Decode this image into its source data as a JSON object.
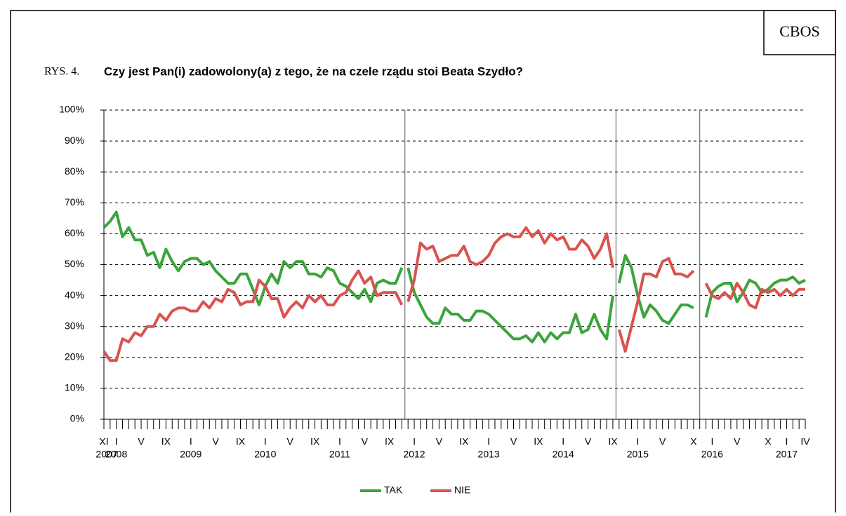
{
  "header": {
    "brand": "CBOS",
    "figure": "RYS. 4."
  },
  "chart_data": {
    "type": "line",
    "title": "Czy jest Pan(i) zadowolony(a) z tego, że na czele rządu stoi Beata Szydło?",
    "categories": [
      "XI",
      null,
      "I",
      null,
      null,
      null,
      "V",
      null,
      null,
      null,
      "IX",
      null,
      null,
      null,
      "I",
      null,
      null,
      null,
      "V",
      null,
      null,
      null,
      "IX",
      null,
      null,
      null,
      "I",
      null,
      null,
      null,
      "V",
      null,
      null,
      null,
      "IX",
      null,
      null,
      null,
      "I",
      null,
      null,
      null,
      "V",
      null,
      null,
      null,
      "IX",
      null,
      null,
      null,
      "I",
      null,
      null,
      null,
      "V",
      null,
      null,
      null,
      "IX",
      null,
      null,
      null,
      "I",
      null,
      null,
      null,
      "V",
      null,
      null,
      null,
      "IX",
      null,
      null,
      null,
      "I",
      null,
      null,
      null,
      "V",
      null,
      null,
      null,
      "IX",
      null,
      null,
      null,
      "I",
      null,
      null,
      null,
      "V",
      null,
      null,
      null,
      null,
      "X",
      null,
      null,
      "I",
      null,
      null,
      null,
      "V",
      null,
      null,
      null,
      null,
      "X",
      null,
      null,
      "I",
      null,
      null,
      "IV"
    ],
    "year_labels": [
      "2007",
      null,
      "2008",
      null,
      null,
      null,
      null,
      null,
      null,
      null,
      null,
      null,
      null,
      null,
      "2009",
      null,
      null,
      null,
      null,
      null,
      null,
      null,
      null,
      null,
      null,
      null,
      "2010",
      null,
      null,
      null,
      null,
      null,
      null,
      null,
      null,
      null,
      null,
      null,
      "2011",
      null,
      null,
      null,
      null,
      null,
      null,
      null,
      null,
      null,
      null,
      null,
      "2012",
      null,
      null,
      null,
      null,
      null,
      null,
      null,
      null,
      null,
      null,
      null,
      "2013",
      null,
      null,
      null,
      null,
      null,
      null,
      null,
      null,
      null,
      null,
      null,
      "2014",
      null,
      null,
      null,
      null,
      null,
      null,
      null,
      null,
      null,
      null,
      null,
      "2015",
      null,
      null,
      null,
      null,
      null,
      null,
      null,
      null,
      null,
      null,
      null,
      "2016",
      null,
      null,
      null,
      null,
      null,
      null,
      null,
      null,
      null,
      null,
      null,
      "2017",
      null,
      null,
      null
    ],
    "dividers": [
      48.5,
      82.5,
      96
    ],
    "series": [
      {
        "name": "TAK",
        "color": "#3aa53a",
        "values": [
          62,
          64,
          67,
          59,
          62,
          58,
          58,
          53,
          54,
          49,
          55,
          51,
          48,
          51,
          52,
          52,
          50,
          51,
          48,
          46,
          44,
          44,
          47,
          47,
          42,
          37,
          43,
          47,
          44,
          51,
          49,
          51,
          51,
          47,
          47,
          46,
          49,
          48,
          44,
          43,
          41,
          39,
          42,
          38,
          44,
          45,
          44,
          44,
          49,
          49,
          41,
          37,
          33,
          31,
          31,
          36,
          34,
          34,
          32,
          32,
          35,
          35,
          34,
          32,
          30,
          28,
          26,
          26,
          27,
          25,
          28,
          25,
          28,
          26,
          28,
          28,
          34,
          28,
          29,
          34,
          29,
          26,
          40,
          44,
          53,
          49,
          40,
          33,
          37,
          35,
          32,
          31,
          34,
          37,
          37,
          36,
          null,
          33,
          41,
          43,
          44,
          44,
          38,
          41,
          45,
          44,
          41,
          42,
          44,
          45,
          45,
          46,
          44,
          45
        ]
      },
      {
        "name": "NIE",
        "color": "#d9534f",
        "values": [
          22,
          19,
          19,
          26,
          25,
          28,
          27,
          30,
          30,
          34,
          32,
          35,
          36,
          36,
          35,
          35,
          38,
          36,
          39,
          38,
          42,
          41,
          37,
          38,
          38,
          45,
          43,
          39,
          39,
          33,
          36,
          38,
          36,
          40,
          38,
          40,
          37,
          37,
          40,
          41,
          45,
          48,
          44,
          46,
          40,
          41,
          41,
          41,
          37,
          38,
          45,
          57,
          55,
          56,
          51,
          52,
          53,
          53,
          56,
          51,
          50,
          51,
          53,
          57,
          59,
          60,
          59,
          59,
          62,
          59,
          61,
          57,
          60,
          58,
          59,
          55,
          55,
          58,
          56,
          52,
          55,
          60,
          49,
          29,
          22,
          30,
          38,
          47,
          47,
          46,
          51,
          52,
          47,
          47,
          46,
          48,
          null,
          44,
          40,
          39,
          41,
          39,
          44,
          41,
          37,
          36,
          42,
          41,
          42,
          40,
          42,
          40,
          42,
          42
        ]
      }
    ],
    "ylim": [
      0,
      100
    ],
    "yticks": [
      {
        "value": 0,
        "label": "0%"
      },
      {
        "value": 10,
        "label": "10%"
      },
      {
        "value": 20,
        "label": "20%"
      },
      {
        "value": 30,
        "label": "30%"
      },
      {
        "value": 40,
        "label": "40%"
      },
      {
        "value": 50,
        "label": "50%"
      },
      {
        "value": 60,
        "label": "60%"
      },
      {
        "value": 70,
        "label": "70%"
      },
      {
        "value": 80,
        "label": "80%"
      },
      {
        "value": 90,
        "label": "90%"
      },
      {
        "value": 100,
        "label": "100%"
      }
    ],
    "grid": true,
    "legend": "bottom"
  }
}
